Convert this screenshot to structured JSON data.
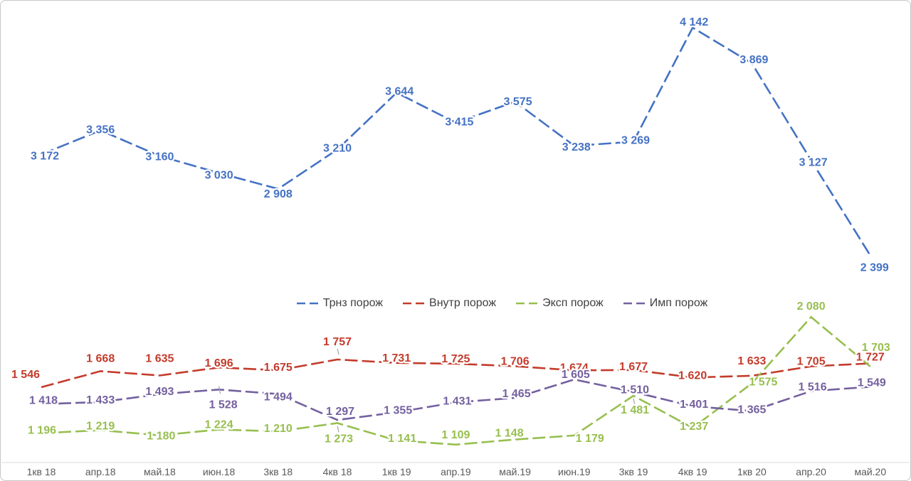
{
  "chart_data": {
    "type": "line",
    "title": "",
    "categories": [
      "1кв 18",
      "апр.18",
      "май.18",
      "июн.18",
      "3кв 18",
      "4кв 18",
      "1кв 19",
      "апр.19",
      "май.19",
      "июн.19",
      "3кв 19",
      "4кв 19",
      "1кв 20",
      "апр.20",
      "май.20"
    ],
    "series": [
      {
        "name": "Трнз порож",
        "color": "#4472C4",
        "values": [
          3172,
          3356,
          3160,
          3030,
          2908,
          3210,
          3644,
          3415,
          3575,
          3238,
          3269,
          4142,
          3869,
          3127,
          2399
        ]
      },
      {
        "name": "Внутр порож",
        "color": "#C33B2B",
        "values": [
          1546,
          1668,
          1635,
          1696,
          1675,
          1757,
          1731,
          1725,
          1706,
          1674,
          1677,
          1620,
          1633,
          1705,
          1727
        ]
      },
      {
        "name": "Эксп порож",
        "color": "#97BF4F",
        "values": [
          1196,
          1219,
          1180,
          1224,
          1210,
          1273,
          1141,
          1109,
          1148,
          1179,
          1481,
          1237,
          1575,
          2080,
          1703
        ]
      },
      {
        "name": "Имп порож",
        "color": "#74609F",
        "values": [
          1418,
          1433,
          1493,
          1528,
          1494,
          1297,
          1355,
          1431,
          1465,
          1605,
          1510,
          1401,
          1365,
          1516,
          1549
        ]
      }
    ],
    "line_style": "dashed",
    "data_labels": true,
    "number_format": "space-thousands",
    "legend_position": "center-middle",
    "grid": false,
    "y_axis_visible": false,
    "x_axis_line_color": "#D9D9D9",
    "x_axis_label_color": "#595959",
    "leader_tick_color": "#A6A6A6",
    "background": "#FFFFFF"
  }
}
